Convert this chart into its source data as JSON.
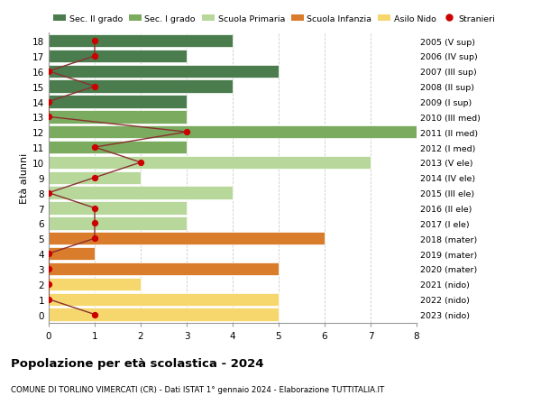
{
  "ages": [
    18,
    17,
    16,
    15,
    14,
    13,
    12,
    11,
    10,
    9,
    8,
    7,
    6,
    5,
    4,
    3,
    2,
    1,
    0
  ],
  "right_labels": [
    "2005 (V sup)",
    "2006 (IV sup)",
    "2007 (III sup)",
    "2008 (II sup)",
    "2009 (I sup)",
    "2010 (III med)",
    "2011 (II med)",
    "2012 (I med)",
    "2013 (V ele)",
    "2014 (IV ele)",
    "2015 (III ele)",
    "2016 (II ele)",
    "2017 (I ele)",
    "2018 (mater)",
    "2019 (mater)",
    "2020 (mater)",
    "2021 (nido)",
    "2022 (nido)",
    "2023 (nido)"
  ],
  "bar_values": [
    4,
    3,
    5,
    4,
    3,
    3,
    8,
    3,
    7,
    2,
    4,
    3,
    3,
    6,
    1,
    5,
    2,
    5,
    5
  ],
  "stranieri": [
    1,
    1,
    0,
    1,
    0,
    0,
    3,
    1,
    2,
    1,
    0,
    1,
    1,
    1,
    0,
    0,
    0,
    0,
    1
  ],
  "bar_colors": [
    "#4a7c4e",
    "#4a7c4e",
    "#4a7c4e",
    "#4a7c4e",
    "#4a7c4e",
    "#7aab5e",
    "#7aab5e",
    "#7aab5e",
    "#b8d89b",
    "#b8d89b",
    "#b8d89b",
    "#b8d89b",
    "#b8d89b",
    "#d97c2b",
    "#d97c2b",
    "#d97c2b",
    "#f5d76e",
    "#f5d76e",
    "#f5d76e"
  ],
  "legend_labels": [
    "Sec. II grado",
    "Sec. I grado",
    "Scuola Primaria",
    "Scuola Infanzia",
    "Asilo Nido",
    "Stranieri"
  ],
  "legend_colors": [
    "#4a7c4e",
    "#7aab5e",
    "#b8d89b",
    "#d97c2b",
    "#f5d76e",
    "#cc0000"
  ],
  "title": "Popolazione per età scolastica - 2024",
  "subtitle": "COMUNE DI TORLINO VIMERCATI (CR) - Dati ISTAT 1° gennaio 2024 - Elaborazione TUTTITALIA.IT",
  "ylabel_left": "Età alunni",
  "xlim": [
    0,
    8
  ],
  "xticks": [
    0,
    1,
    2,
    3,
    4,
    5,
    6,
    7,
    8
  ],
  "bar_height": 0.85,
  "line_color": "#8b3030",
  "dot_color": "#cc0000",
  "bg_color": "#ffffff",
  "grid_color": "#cccccc"
}
